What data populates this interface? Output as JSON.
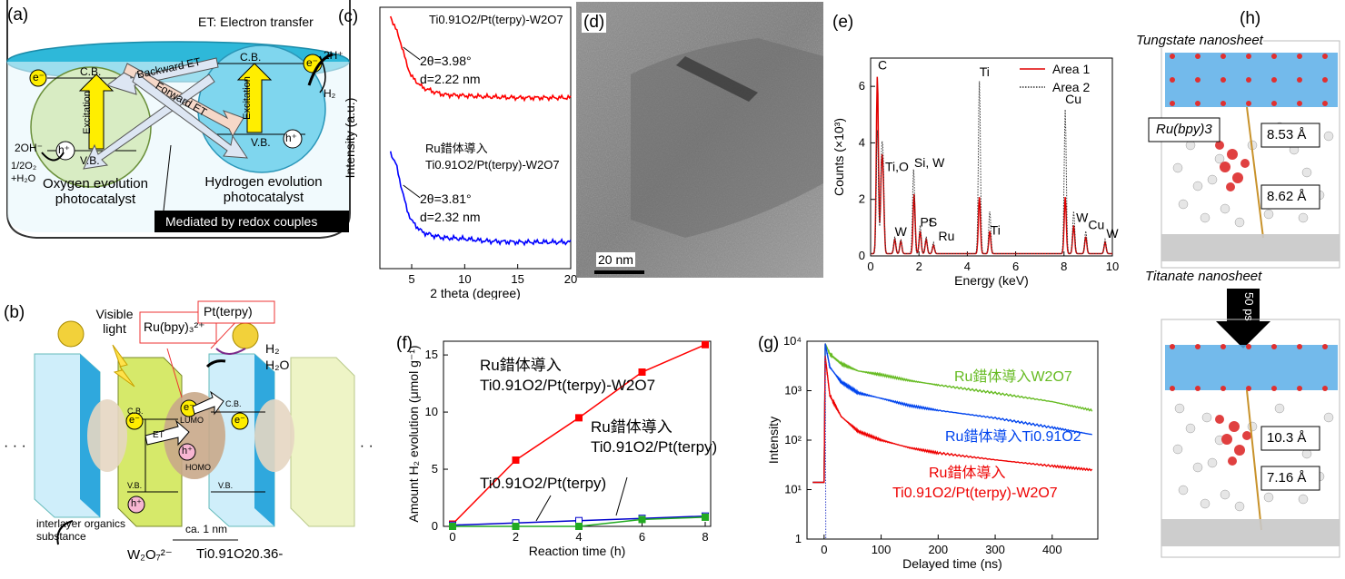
{
  "panel_labels": {
    "a": "(a)",
    "b": "(b)",
    "c": "(c)",
    "d": "(d)",
    "e": "(e)",
    "f": "(f)",
    "g": "(g)",
    "h": "(h)"
  },
  "panel_a": {
    "et_note": "ET: Electron transfer",
    "cb": "C.B.",
    "vb": "V.B.",
    "backward_et": "Backward ET",
    "forward_et": "Forward ET",
    "excitation": "Excitation",
    "e": "e⁻",
    "h": "h⁺",
    "two_oh": "2OH⁻",
    "half_o2_h2o": "1/2O₂ +H₂O",
    "two_h": "2H⁺",
    "h2": "H₂",
    "oxygen_label": "Oxygen evolution photocatalyst",
    "hydrogen_label": "Hydrogen evolution photocatalyst",
    "mediated": "Mediated by redox couples"
  },
  "panel_b": {
    "visible_light": "Visible light",
    "pt_terpy": "Pt(terpy)",
    "ru_bpy": "Ru(bpy)₃²⁺",
    "h2": "H₂",
    "h2o": "H₂O",
    "lumo": "LUMO",
    "homo": "HOMO",
    "cb": "C.B.",
    "vb": "V.B.",
    "et": "ET",
    "e": "e⁻",
    "h": "h⁺",
    "ca_1nm": "ca. 1 nm",
    "interlayer": "interlayer organics substance",
    "w2o7": "W₂O₇²⁻",
    "ti_o2": "Ti0.91O20.36-"
  },
  "panel_d": {
    "scale_bar": "20 nm"
  },
  "panel_h": {
    "tungstate": "Tungstate nanosheet",
    "titanate": "Titanate nanosheet",
    "ru_bpy": "Ru(bpy)3",
    "d1": "8.53 Å",
    "d2": "8.62 Å",
    "d3": "10.3 Å",
    "d4": "7.16 Å",
    "time": "50 ps"
  },
  "chart_data": [
    {
      "id": "c",
      "type": "line",
      "xlabel": "2 theta (degree)",
      "ylabel": "Intensity (a.u.)",
      "xlim": [
        2,
        20
      ],
      "xticks": [
        5,
        10,
        15,
        20
      ],
      "series": [
        {
          "name": "Ti0.91O2/Pt(terpy)-W2O7",
          "color": "#ff0000",
          "x": [
            3,
            3.5,
            4,
            4.5,
            5,
            6,
            7,
            8,
            10,
            12,
            15,
            20
          ],
          "y": [
            1.0,
            0.88,
            0.74,
            0.55,
            0.42,
            0.32,
            0.28,
            0.25,
            0.24,
            0.23,
            0.22,
            0.22
          ],
          "annotation": [
            "2θ=3.98°",
            "d=2.22 nm"
          ]
        },
        {
          "name": "Ru錯体導入 Ti0.91O2/Pt(terpy)-W2O7",
          "color": "#0000ff",
          "x": [
            3,
            3.5,
            4,
            4.5,
            5,
            6,
            7,
            8,
            10,
            12,
            15,
            20
          ],
          "y": [
            1.0,
            0.9,
            0.7,
            0.5,
            0.38,
            0.28,
            0.25,
            0.23,
            0.22,
            0.2,
            0.19,
            0.19
          ],
          "annotation": [
            "2θ=3.81°",
            "d=2.32 nm"
          ]
        }
      ]
    },
    {
      "id": "e",
      "type": "line",
      "xlabel": "Energy (keV)",
      "ylabel": "Counts (×10³)",
      "xlim": [
        0,
        10
      ],
      "ylim": [
        0,
        7
      ],
      "xticks": [
        0,
        2,
        4,
        6,
        8,
        10
      ],
      "yticks": [
        0,
        2,
        4,
        6
      ],
      "legend": "top-right",
      "series": [
        {
          "name": "Area 1",
          "color": "#e00000",
          "style": "solid",
          "peaks": [
            [
              0.28,
              6.3
            ],
            [
              0.45,
              2.7
            ],
            [
              0.52,
              2.2
            ],
            [
              1.0,
              0.5
            ],
            [
              1.25,
              0.45
            ],
            [
              1.8,
              2.1
            ],
            [
              2.05,
              0.8
            ],
            [
              2.3,
              0.5
            ],
            [
              2.6,
              0.3
            ],
            [
              4.5,
              2.0
            ],
            [
              4.93,
              0.8
            ],
            [
              8.05,
              2.0
            ],
            [
              8.4,
              1.0
            ],
            [
              8.9,
              0.6
            ],
            [
              9.7,
              0.4
            ]
          ]
        },
        {
          "name": "Area 2",
          "color": "#333333",
          "style": "dotted",
          "peaks": [
            [
              0.28,
              4.4
            ],
            [
              0.45,
              2.9
            ],
            [
              0.52,
              2.7
            ],
            [
              1.0,
              0.6
            ],
            [
              1.25,
              0.5
            ],
            [
              1.78,
              3.0
            ],
            [
              2.05,
              1.0
            ],
            [
              2.3,
              0.6
            ],
            [
              2.6,
              0.4
            ],
            [
              4.5,
              6.1
            ],
            [
              4.93,
              1.5
            ],
            [
              8.05,
              5.1
            ],
            [
              8.4,
              1.5
            ],
            [
              8.9,
              0.8
            ],
            [
              9.7,
              0.5
            ]
          ]
        }
      ],
      "peak_labels": [
        "C",
        "Ti,O",
        "Si, W",
        "W",
        "Pt",
        "S",
        "Ru",
        "Ti",
        "Ti",
        "Cu",
        "W",
        "Cu",
        "W"
      ]
    },
    {
      "id": "f",
      "type": "line",
      "xlabel": "Reaction time (h)",
      "ylabel": "Amount H₂ evolution (μmol g⁻¹)",
      "xlim": [
        0,
        8
      ],
      "ylim": [
        0,
        16
      ],
      "xticks": [
        0,
        2,
        4,
        6,
        8
      ],
      "yticks": [
        0,
        5,
        10,
        15
      ],
      "series": [
        {
          "name": "Ru錯体導入 Ti0.91O2/Pt(terpy)-W2O7",
          "color": "#ff0000",
          "marker": "square-filled",
          "x": [
            0,
            2,
            4,
            6,
            8
          ],
          "y": [
            0.2,
            5.8,
            9.5,
            13.5,
            15.9
          ]
        },
        {
          "name": "Ru錯体導入 Ti0.91O2/Pt(terpy)",
          "color": "#0000cc",
          "marker": "square-open",
          "x": [
            0,
            2,
            4,
            6,
            8
          ],
          "y": [
            0.1,
            0.3,
            0.5,
            0.7,
            0.9
          ]
        },
        {
          "name": "Ti0.91O2/Pt(terpy)",
          "color": "#22aa22",
          "marker": "square-filled",
          "x": [
            0,
            2,
            4,
            6,
            8
          ],
          "y": [
            0.0,
            0.0,
            0.0,
            0.6,
            0.8
          ]
        }
      ]
    },
    {
      "id": "g",
      "type": "line",
      "xlabel": "Delayed time (ns)",
      "ylabel": "Intensity",
      "yscale": "log",
      "xlim": [
        -30,
        480
      ],
      "ylim": [
        1,
        10000
      ],
      "xticks": [
        0,
        100,
        200,
        300,
        400
      ],
      "yticks": [
        1,
        10,
        100,
        1000,
        10000
      ],
      "series": [
        {
          "name": "Ru錯体導入W2O7",
          "color": "#66bb22",
          "x": [
            -20,
            0,
            2,
            10,
            30,
            60,
            100,
            150,
            200,
            300,
            400,
            470
          ],
          "y": [
            14,
            14,
            9000,
            5500,
            3500,
            2500,
            2100,
            1600,
            1300,
            900,
            600,
            400
          ]
        },
        {
          "name": "Ru錯体導入Ti0.91O2",
          "color": "#0044ee",
          "x": [
            -20,
            0,
            2,
            10,
            30,
            60,
            100,
            150,
            200,
            300,
            400,
            470
          ],
          "y": [
            14,
            14,
            9000,
            3000,
            1500,
            900,
            700,
            500,
            400,
            280,
            180,
            130
          ]
        },
        {
          "name": "Ru錯体導入 Ti0.91O2/Pt(terpy)-W2O7",
          "color": "#ee0000",
          "x": [
            -20,
            0,
            2,
            10,
            30,
            60,
            100,
            150,
            200,
            300,
            400,
            470
          ],
          "y": [
            14,
            14,
            5000,
            800,
            300,
            150,
            100,
            70,
            55,
            40,
            30,
            25
          ]
        }
      ]
    }
  ]
}
